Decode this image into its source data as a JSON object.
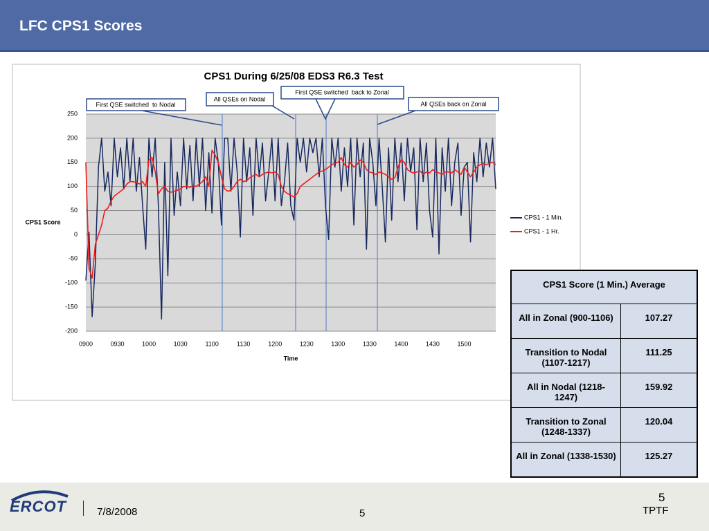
{
  "slide_title": "LFC CPS1 Scores",
  "chart_data": {
    "type": "line",
    "title": "CPS1 During 6/25/08 EDS3 R6.3 Test",
    "x_label": "Time",
    "y_label": "CPS1 Score",
    "categories": [
      "0900",
      null,
      null,
      null,
      null,
      null,
      null,
      null,
      null,
      null,
      "0930",
      null,
      null,
      null,
      null,
      null,
      null,
      null,
      null,
      null,
      "1000",
      null,
      null,
      null,
      null,
      null,
      null,
      null,
      null,
      null,
      "1030",
      null,
      null,
      null,
      null,
      null,
      null,
      null,
      null,
      null,
      "1100",
      null,
      null,
      null,
      null,
      null,
      null,
      null,
      null,
      null,
      "1130",
      null,
      null,
      null,
      null,
      null,
      null,
      null,
      null,
      null,
      "1200",
      null,
      null,
      null,
      null,
      null,
      null,
      null,
      null,
      null,
      "1230",
      null,
      null,
      null,
      null,
      null,
      null,
      null,
      null,
      null,
      "1300",
      null,
      null,
      null,
      null,
      null,
      null,
      null,
      null,
      null,
      "1330",
      null,
      null,
      null,
      null,
      null,
      null,
      null,
      null,
      null,
      "1400",
      null,
      null,
      null,
      null,
      null,
      null,
      null,
      null,
      null,
      "1430",
      null,
      null,
      null,
      null,
      null,
      null,
      null,
      null,
      null,
      "1500",
      null,
      null,
      null,
      null,
      null,
      null,
      null,
      null,
      null,
      null
    ],
    "series": [
      {
        "name": "CPS1 - 1 Min.",
        "color": "#17285e",
        "values": [
          -95,
          5,
          -170,
          -60,
          140,
          200,
          90,
          130,
          60,
          200,
          120,
          180,
          95,
          200,
          110,
          200,
          90,
          160,
          60,
          -30,
          200,
          120,
          200,
          60,
          -175,
          150,
          -85,
          200,
          40,
          130,
          60,
          200,
          95,
          185,
          70,
          200,
          100,
          200,
          50,
          170,
          45,
          200,
          150,
          20,
          200,
          200,
          90,
          200,
          130,
          -5,
          200,
          110,
          180,
          40,
          200,
          120,
          190,
          70,
          130,
          200,
          70,
          200,
          60,
          110,
          190,
          60,
          30,
          200,
          150,
          200,
          130,
          200,
          170,
          200,
          120,
          200,
          60,
          -10,
          200,
          140,
          200,
          90,
          180,
          100,
          200,
          20,
          200,
          120,
          190,
          -30,
          200,
          150,
          60,
          200,
          100,
          -15,
          180,
          30,
          200,
          110,
          190,
          70,
          200,
          130,
          180,
          10,
          200,
          110,
          190,
          50,
          -5,
          200,
          -40,
          180,
          90,
          200,
          60,
          150,
          190,
          40,
          140,
          150,
          -15,
          170,
          110,
          200,
          120,
          190,
          140,
          200,
          95
        ]
      },
      {
        "name": "CPS1 - 1 Hr.",
        "color": "#ee1c1c",
        "values": [
          150,
          -70,
          -90,
          -20,
          0,
          20,
          50,
          55,
          70,
          80,
          85,
          90,
          95,
          105,
          110,
          110,
          108,
          105,
          110,
          100,
          155,
          160,
          130,
          85,
          95,
          100,
          90,
          88,
          90,
          92,
          95,
          100,
          100,
          98,
          102,
          100,
          105,
          110,
          120,
          100,
          175,
          165,
          150,
          120,
          95,
          90,
          92,
          100,
          110,
          115,
          110,
          112,
          118,
          122,
          125,
          120,
          125,
          128,
          130,
          128,
          130,
          125,
          100,
          90,
          85,
          82,
          78,
          85,
          100,
          105,
          110,
          115,
          120,
          125,
          130,
          132,
          135,
          140,
          145,
          148,
          150,
          160,
          145,
          140,
          150,
          140,
          145,
          155,
          150,
          135,
          130,
          128,
          125,
          130,
          128,
          125,
          120,
          115,
          118,
          140,
          155,
          150,
          135,
          130,
          128,
          130,
          132,
          125,
          130,
          128,
          135,
          130,
          128,
          125,
          130,
          130,
          128,
          135,
          130,
          125,
          140,
          130,
          120,
          130,
          140,
          145,
          148,
          145,
          148,
          150,
          145
        ]
      }
    ],
    "ylim": [
      -200,
      250
    ],
    "yticks": [
      -200,
      -150,
      -100,
      -50,
      0,
      50,
      100,
      150,
      200,
      250
    ],
    "grid": true,
    "legend": "right",
    "annotations": [
      "First QSE switched  to Nodal",
      "All QSEs on Nodal",
      "First QSE switched  back to Zonal",
      "All QSEs back on Zonal"
    ]
  },
  "table": {
    "header": "CPS1 Score (1 Min.) Average",
    "rows": [
      [
        "All in Zonal (900-1106)",
        "107.27"
      ],
      [
        "Transition to Nodal (1107-1217)",
        "111.25"
      ],
      [
        "All in Nodal (1218-1247)",
        "159.92"
      ],
      [
        "Transition to Zonal (1248-1337)",
        "120.04"
      ],
      [
        "All in Zonal (1338-1530)",
        "125.27"
      ]
    ]
  },
  "footer": {
    "logo": "ERCOT",
    "date": "7/8/2008",
    "page_center": "5",
    "page_right": "5",
    "group": "TPTF"
  }
}
